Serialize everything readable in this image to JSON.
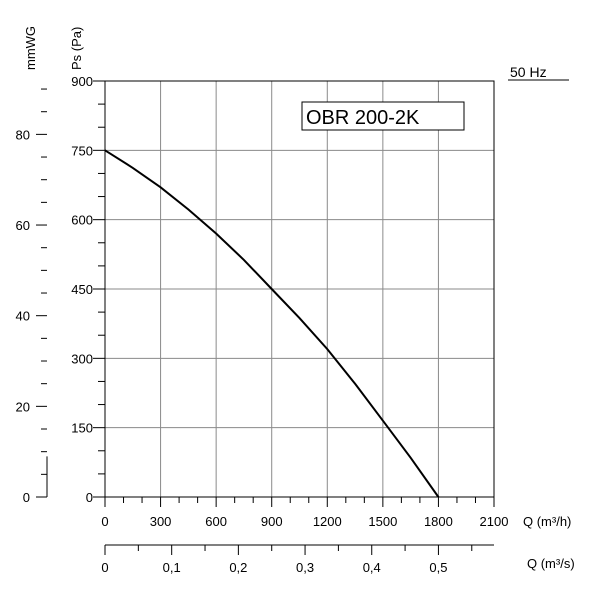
{
  "chart_data": {
    "type": "line",
    "title": "OBR 200-2K",
    "frequency_label": "50 Hz",
    "x_primary": {
      "label": "Q (m³/h)",
      "range": [
        0,
        2100
      ],
      "ticks": [
        0,
        300,
        600,
        900,
        1200,
        1500,
        1800,
        2100
      ],
      "tick_labels": [
        "0",
        "300",
        "600",
        "900",
        "1200",
        "1500",
        "1800",
        "2100"
      ]
    },
    "x_secondary": {
      "label": "Q (m³/s)",
      "ticks": [
        0,
        0.1,
        0.2,
        0.3,
        0.4,
        0.5
      ],
      "tick_labels": [
        "0",
        "0,1",
        "0,2",
        "0,3",
        "0,4",
        "0,5"
      ]
    },
    "y_primary": {
      "label": "Ps (Pa)",
      "range": [
        0,
        900
      ],
      "ticks": [
        0,
        150,
        300,
        450,
        600,
        750,
        900
      ],
      "tick_labels": [
        "0",
        "150",
        "300",
        "450",
        "600",
        "750",
        "900"
      ]
    },
    "y_secondary": {
      "label": "mmWG",
      "ticks": [
        0,
        20,
        40,
        60,
        80
      ],
      "tick_labels": [
        "0",
        "20",
        "40",
        "60",
        "80"
      ]
    },
    "grid": true,
    "series": [
      {
        "x": [
          0,
          150,
          300,
          450,
          600,
          750,
          900,
          1050,
          1200,
          1350,
          1500,
          1650,
          1800
        ],
        "y": [
          750,
          712,
          670,
          622,
          570,
          513,
          450,
          387,
          320,
          245,
          165,
          85,
          0
        ]
      }
    ]
  }
}
